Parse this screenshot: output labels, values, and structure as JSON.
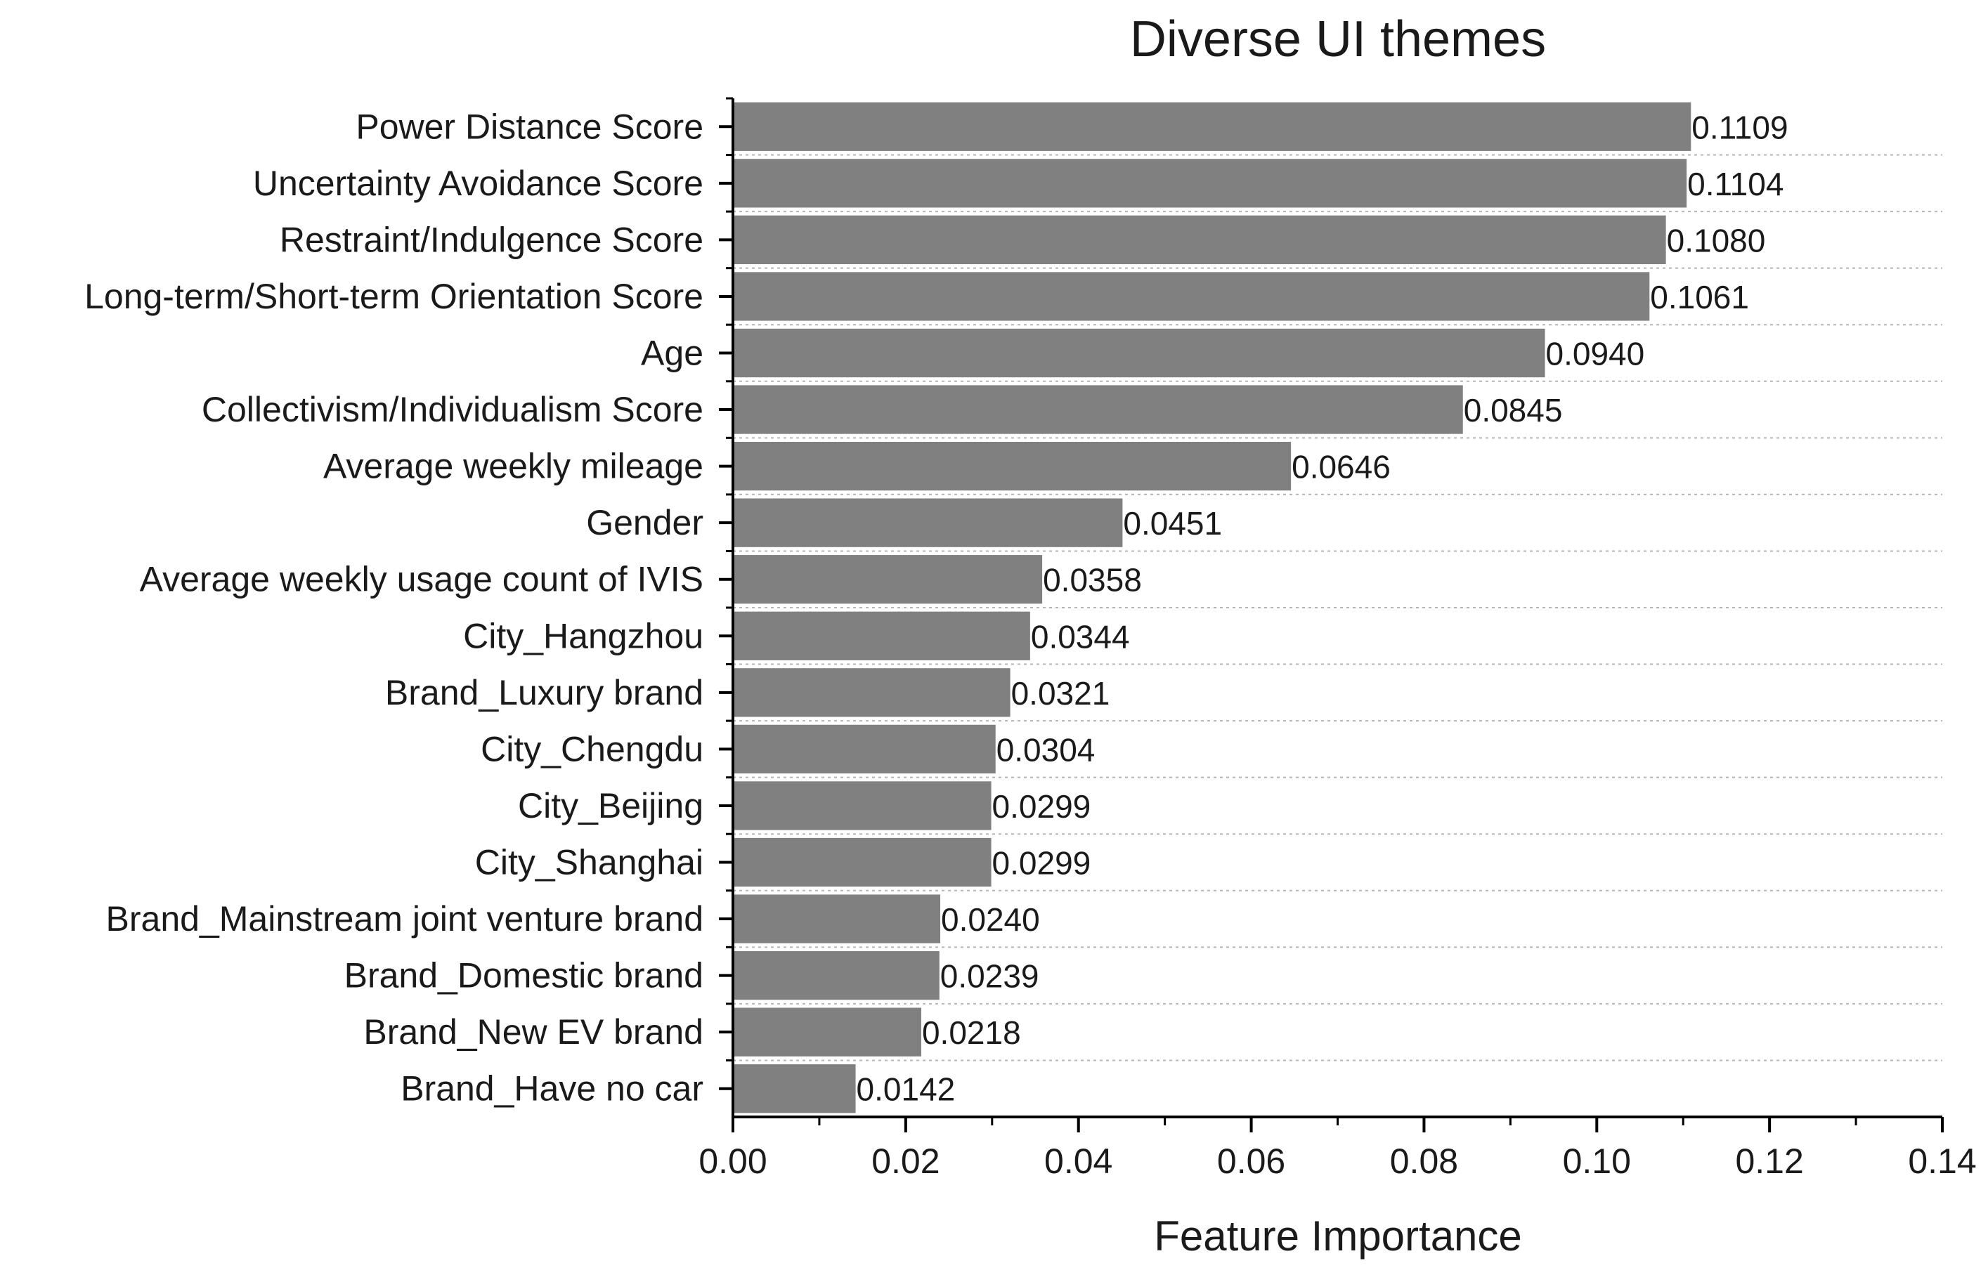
{
  "chart_data": {
    "type": "bar",
    "orientation": "horizontal",
    "title": "Diverse UI themes",
    "xlabel": "Feature Importance",
    "ylabel": "",
    "xlim": [
      0,
      0.14
    ],
    "x_ticks": [
      "0.00",
      "0.02",
      "0.04",
      "0.06",
      "0.08",
      "0.10",
      "0.12",
      "0.14"
    ],
    "grid": "horizontal dotted",
    "bar_color": "#808080",
    "categories": [
      "Power Distance Score",
      "Uncertainty Avoidance Score",
      "Restraint/Indulgence Score",
      "Long-term/Short-term Orientation Score",
      "Age",
      "Collectivism/Individualism Score",
      "Average weekly mileage",
      "Gender",
      "Average weekly usage count of IVIS",
      "City_Hangzhou",
      "Brand_Luxury brand",
      "City_Chengdu",
      "City_Beijing",
      "City_Shanghai",
      "Brand_Mainstream joint venture brand",
      "Brand_Domestic brand",
      "Brand_New EV brand",
      "Brand_Have no car"
    ],
    "values": [
      0.1109,
      0.1104,
      0.108,
      0.1061,
      0.094,
      0.0845,
      0.0646,
      0.0451,
      0.0358,
      0.0344,
      0.0321,
      0.0304,
      0.0299,
      0.0299,
      0.024,
      0.0239,
      0.0218,
      0.0142
    ],
    "value_labels": [
      "0.1109",
      "0.1104",
      "0.1080",
      "0.1061",
      "0.0940",
      "0.0845",
      "0.0646",
      "0.0451",
      "0.0358",
      "0.0344",
      "0.0321",
      "0.0304",
      "0.0299",
      "0.0299",
      "0.0240",
      "0.0239",
      "0.0218",
      "0.0142"
    ]
  }
}
